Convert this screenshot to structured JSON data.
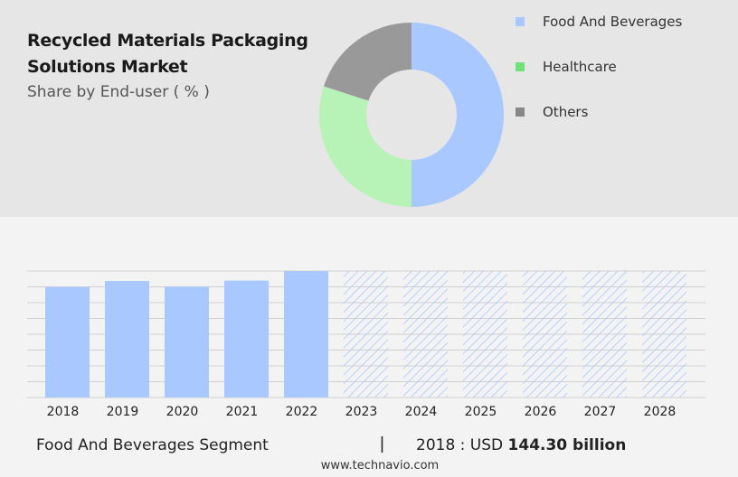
{
  "title": "Recycled Materials Packaging Solutions Market",
  "subtitle": "Share by End-user ( % )",
  "donut": {
    "type": "pie",
    "segments": [
      {
        "label": "Food And Beverages",
        "value": 50,
        "color": "#a8c8ff"
      },
      {
        "label": "Healthcare",
        "value": 30,
        "color": "#b7f2b6"
      },
      {
        "label": "Others",
        "value": 20,
        "color": "#999999"
      }
    ]
  },
  "legend": [
    {
      "label": "Food And Beverages",
      "color": "#a8c8ff"
    },
    {
      "label": "Healthcare",
      "color": "#6fe07a"
    },
    {
      "label": "Others",
      "color": "#888888"
    }
  ],
  "chart_data": {
    "type": "bar",
    "categories": [
      "2018",
      "2019",
      "2020",
      "2021",
      "2022",
      "2023",
      "2024",
      "2025",
      "2026",
      "2027",
      "2028"
    ],
    "values": [
      144.3,
      152.0,
      144.5,
      152.5,
      165.0,
      165.0,
      165.0,
      165.0,
      165.0,
      165.0,
      165.0
    ],
    "forecast_from_index": 5,
    "bar_color": "#a8c8ff",
    "forecast_hatch_color": "#a8c8ff",
    "title": "",
    "xlabel": "",
    "ylabel": "",
    "ylim": [
      0,
      165
    ],
    "grid": true
  },
  "footer": {
    "segment": "Food And Beverages Segment",
    "separator": "|",
    "year_prefix": "2018 : USD",
    "value": "144.30 billion"
  },
  "source": "www.technavio.com"
}
